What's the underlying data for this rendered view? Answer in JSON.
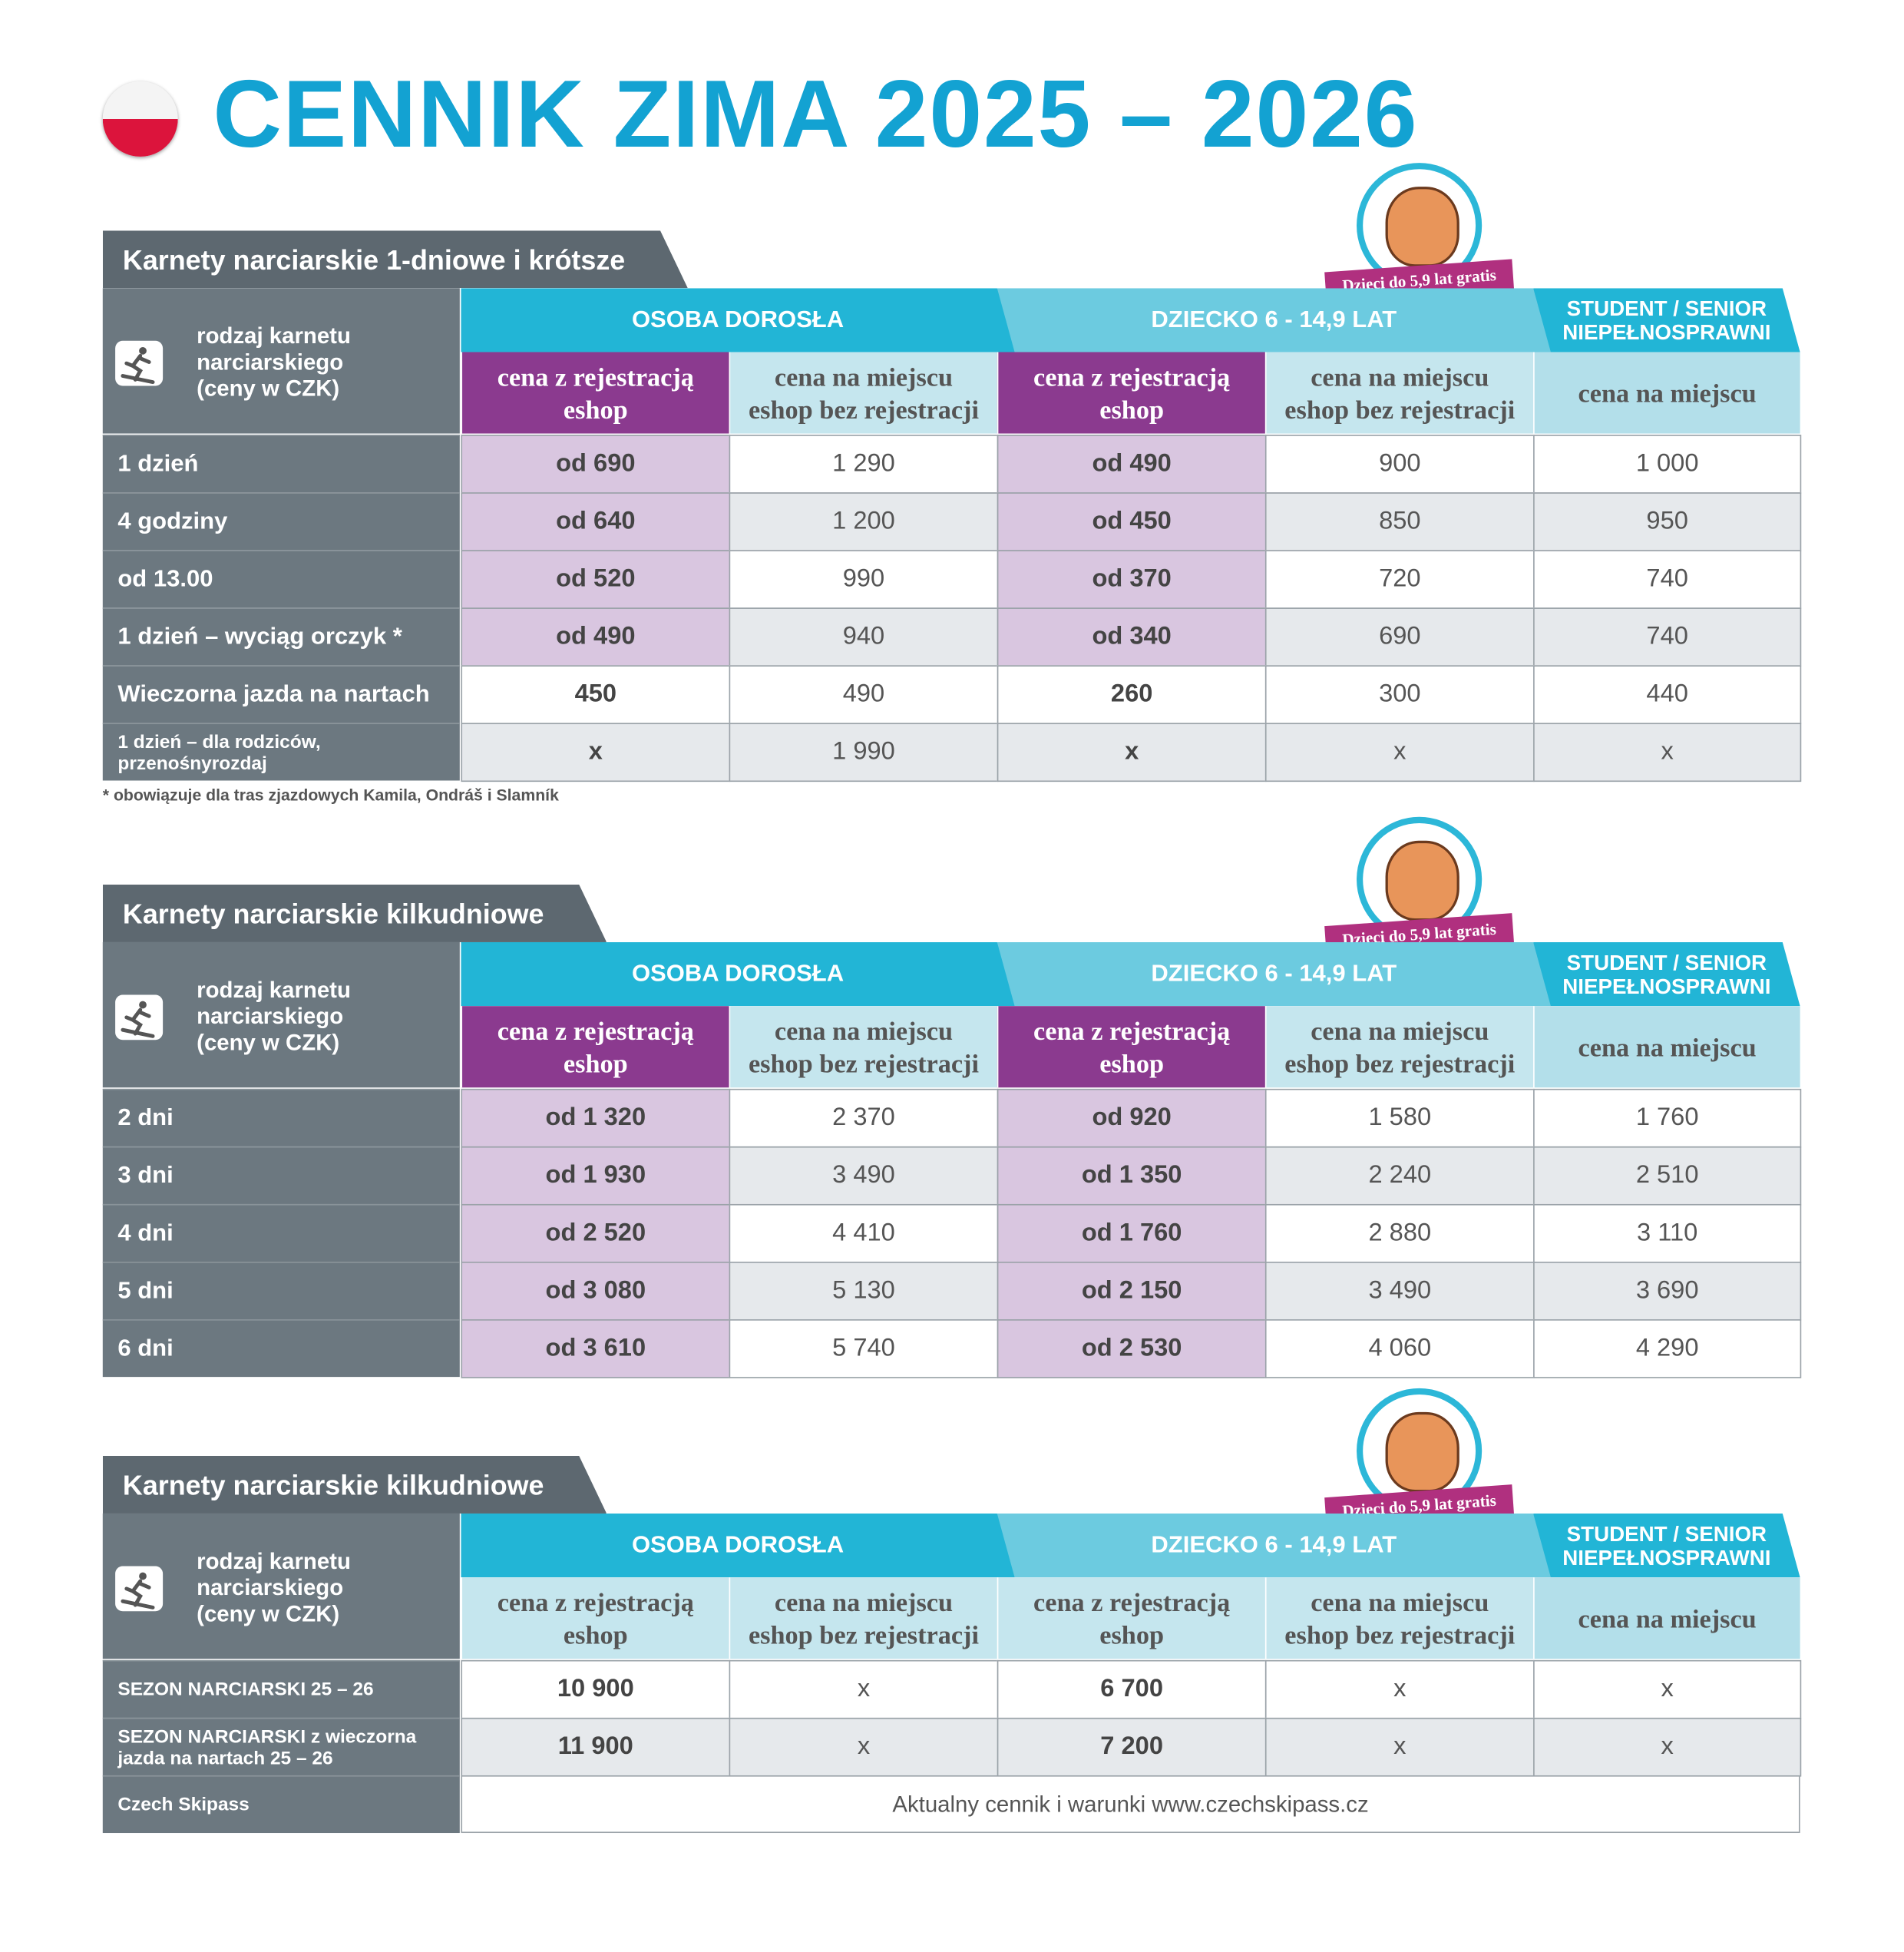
{
  "header": {
    "title": "CENNIK ZIMA 2025 – 2026"
  },
  "sections": [
    {
      "title": "Karnety narciarskie 1-dniowe i krótsze",
      "badge": "Dzieci do 5,9 lat gratis",
      "type_label": "rodzaj karnetu narciarskiego (ceny w CZK)",
      "groups": [
        "OSOBA DOROSŁA",
        "DZIECKO 6 - 14,9 LAT",
        "STUDENT / SENIOR NIEPEŁNOSPRAWNI"
      ],
      "columns": [
        "cena z rejestracją eshop",
        "cena na miejscu eshop bez rejestracji",
        "cena z rejestracją eshop",
        "cena na miejscu eshop bez rejestracji",
        "cena na miejscu"
      ],
      "rows": [
        {
          "label": "1 dzień",
          "cells": [
            "od 690",
            "1 290",
            "od 490",
            "900",
            "1 000"
          ]
        },
        {
          "label": "4 godziny",
          "cells": [
            "od 640",
            "1 200",
            "od 450",
            "850",
            "950"
          ]
        },
        {
          "label": "od 13.00",
          "cells": [
            "od 520",
            "990",
            "od 370",
            "720",
            "740"
          ]
        },
        {
          "label": "1 dzień – wyciąg orczyk *",
          "cells": [
            "od 490",
            "940",
            "od 340",
            "690",
            "740"
          ]
        },
        {
          "label": "Wieczorna jazda na nartach",
          "cells": [
            "450",
            "490",
            "260",
            "300",
            "440"
          ]
        },
        {
          "label": "1 dzień – dla rodziców, przenośnyrozdaj",
          "cells": [
            "x",
            "1 990",
            "x",
            "x",
            "x"
          ]
        }
      ],
      "footnote": "* obowiązuje dla tras zjazdowych Kamila, Ondráš i Slamník"
    },
    {
      "title": "Karnety narciarskie kilkudniowe",
      "badge": "Dzieci do 5,9 lat gratis",
      "type_label": "rodzaj karnetu narciarskiego (ceny w CZK)",
      "groups": [
        "OSOBA DOROSŁA",
        "DZIECKO 6 - 14,9 LAT",
        "STUDENT / SENIOR NIEPEŁNOSPRAWNI"
      ],
      "columns": [
        "cena z rejestracją eshop",
        "cena na miejscu eshop bez rejestracji",
        "cena z rejestracją eshop",
        "cena na miejscu eshop bez rejestracji",
        "cena na miejscu"
      ],
      "rows": [
        {
          "label": "2 dni",
          "cells": [
            "od 1 320",
            "2 370",
            "od 920",
            "1 580",
            "1 760"
          ]
        },
        {
          "label": "3 dni",
          "cells": [
            "od 1 930",
            "3 490",
            "od 1 350",
            "2 240",
            "2 510"
          ]
        },
        {
          "label": "4 dni",
          "cells": [
            "od 2 520",
            "4 410",
            "od 1 760",
            "2 880",
            "3 110"
          ]
        },
        {
          "label": "5 dni",
          "cells": [
            "od 3 080",
            "5 130",
            "od 2 150",
            "3 490",
            "3 690"
          ]
        },
        {
          "label": "6 dni",
          "cells": [
            "od 3 610",
            "5 740",
            "od 2 530",
            "4 060",
            "4 290"
          ]
        }
      ]
    },
    {
      "title": "Karnety narciarskie kilkudniowe",
      "badge": "Dzieci do 5,9 lat gratis",
      "type_label": "rodzaj karnetu narciarskiego (ceny w CZK)",
      "groups": [
        "OSOBA DOROSŁA",
        "DZIECKO 6 - 14,9 LAT",
        "STUDENT / SENIOR NIEPEŁNOSPRAWNI"
      ],
      "columns": [
        "cena z rejestracją eshop",
        "cena na miejscu eshop bez rejestracji",
        "cena z rejestracją eshop",
        "cena na miejscu eshop bez rejestracji",
        "cena na miejscu"
      ],
      "rows": [
        {
          "label": "SEZON NARCIARSKI 25 – 26",
          "cells": [
            "10 900",
            "x",
            "6 700",
            "x",
            "x"
          ]
        },
        {
          "label": "SEZON NARCIARSKI z wieczorna jazda na nartach 25 – 26",
          "cells": [
            "11 900",
            "x",
            "7 200",
            "x",
            "x"
          ]
        },
        {
          "label": "Czech Skipass",
          "note": "Aktualny cennik i warunki www.czechskipass.cz"
        }
      ]
    }
  ]
}
